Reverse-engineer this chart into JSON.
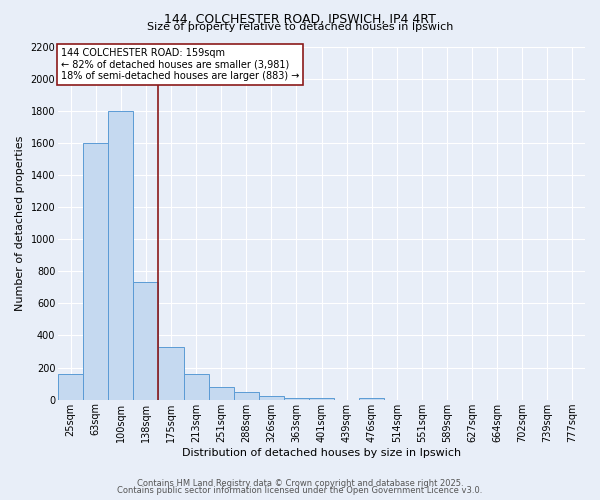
{
  "title_line1": "144, COLCHESTER ROAD, IPSWICH, IP4 4RT",
  "title_line2": "Size of property relative to detached houses in Ipswich",
  "xlabel": "Distribution of detached houses by size in Ipswich",
  "ylabel": "Number of detached properties",
  "bar_labels": [
    "25sqm",
    "63sqm",
    "100sqm",
    "138sqm",
    "175sqm",
    "213sqm",
    "251sqm",
    "288sqm",
    "326sqm",
    "363sqm",
    "401sqm",
    "439sqm",
    "476sqm",
    "514sqm",
    "551sqm",
    "589sqm",
    "627sqm",
    "664sqm",
    "702sqm",
    "739sqm",
    "777sqm"
  ],
  "bar_values": [
    160,
    1600,
    1800,
    730,
    325,
    160,
    80,
    50,
    20,
    10,
    10,
    0,
    10,
    0,
    0,
    0,
    0,
    0,
    0,
    0,
    0
  ],
  "bar_color": "#c5d9f0",
  "bar_edge_color": "#5b9bd5",
  "ylim": [
    0,
    2200
  ],
  "yticks": [
    0,
    200,
    400,
    600,
    800,
    1000,
    1200,
    1400,
    1600,
    1800,
    2000,
    2200
  ],
  "bg_color": "#e8eef8",
  "grid_color": "#ffffff",
  "annotation_text": "144 COLCHESTER ROAD: 159sqm\n← 82% of detached houses are smaller (3,981)\n18% of semi-detached houses are larger (883) →",
  "marker_bar_index": 3,
  "marker_line_color": "#8b1a1a",
  "footer_line1": "Contains HM Land Registry data © Crown copyright and database right 2025.",
  "footer_line2": "Contains public sector information licensed under the Open Government Licence v3.0.",
  "title_fontsize": 9,
  "subtitle_fontsize": 8,
  "axis_label_fontsize": 8,
  "tick_fontsize": 7,
  "annotation_fontsize": 7,
  "footer_fontsize": 6
}
